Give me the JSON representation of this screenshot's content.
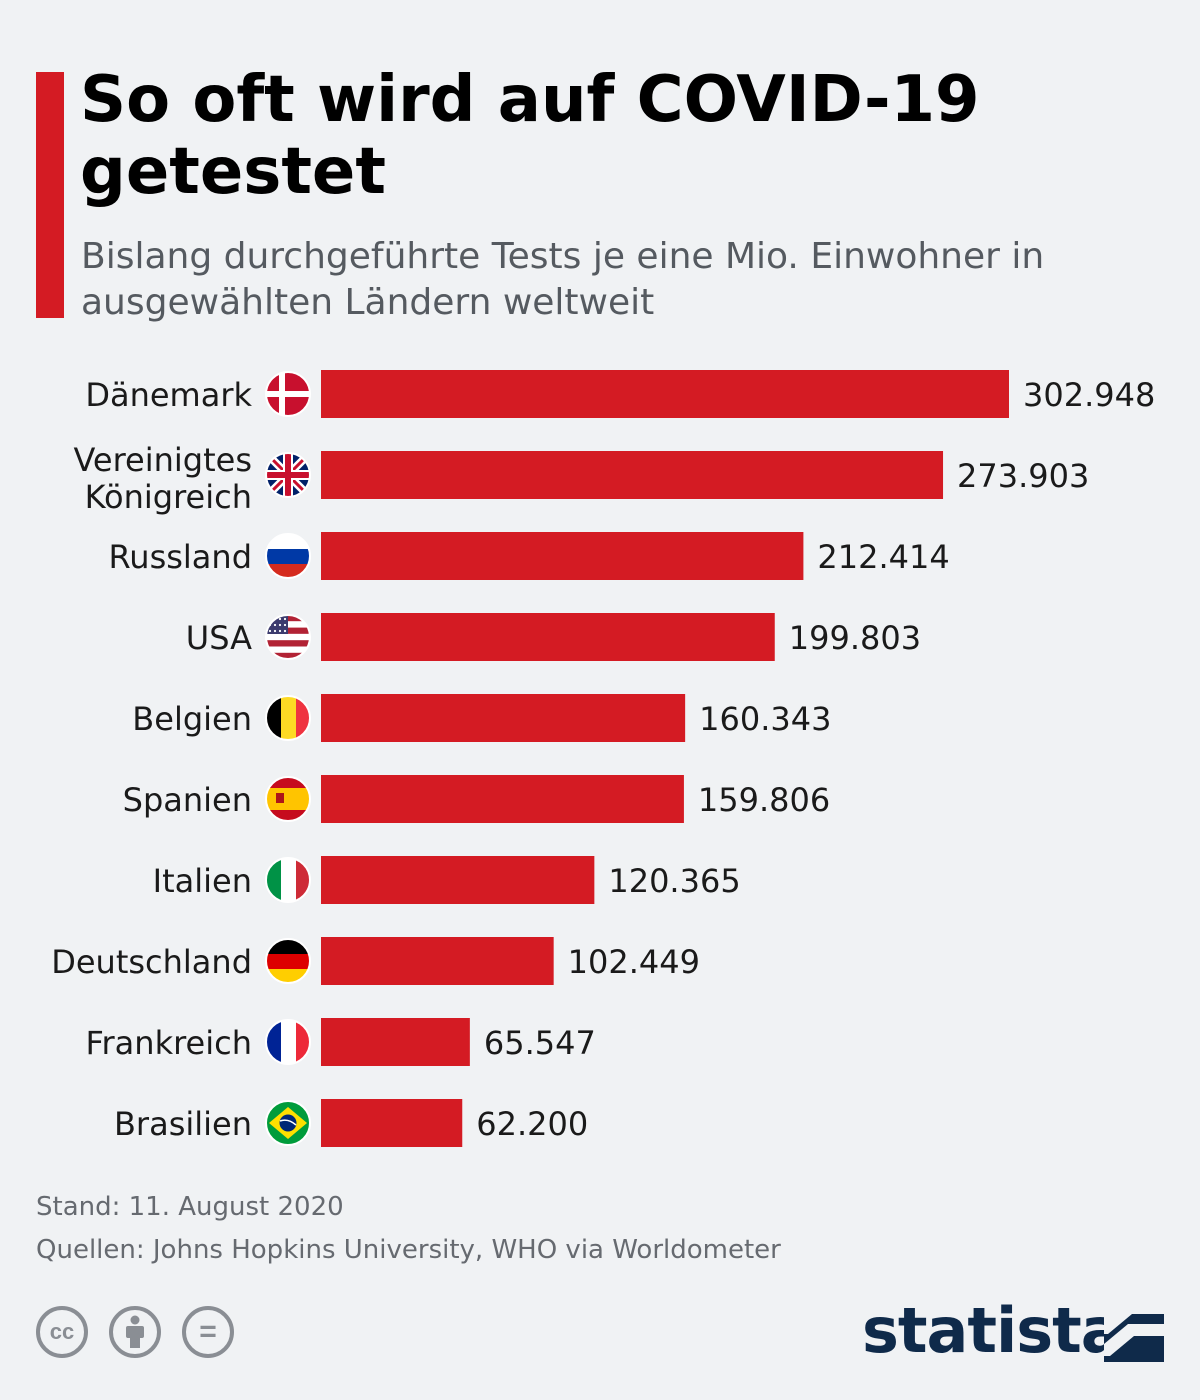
{
  "header": {
    "title": "So oft wird auf COVID-19 getestet",
    "subtitle": "Bislang durchgeführte Tests je eine Mio. Einwohner in ausgewählten Ländern weltweit"
  },
  "chart_data": {
    "type": "bar",
    "orientation": "horizontal",
    "categories": [
      "Dänemark",
      "Vereinigtes Königreich",
      "Russland",
      "USA",
      "Belgien",
      "Spanien",
      "Italien",
      "Deutschland",
      "Frankreich",
      "Brasilien"
    ],
    "values": [
      302948,
      273903,
      212414,
      199803,
      160343,
      159806,
      120365,
      102449,
      65547,
      62200
    ],
    "value_labels": [
      "302.948",
      "273.903",
      "212.414",
      "199.803",
      "160.343",
      "159.806",
      "120.365",
      "102.449",
      "65.547",
      "62.200"
    ],
    "flag_icons": [
      "flag-denmark-icon",
      "flag-united-kingdom-icon",
      "flag-russia-icon",
      "flag-usa-icon",
      "flag-belgium-icon",
      "flag-spain-icon",
      "flag-italy-icon",
      "flag-germany-icon",
      "flag-france-icon",
      "flag-brazil-icon"
    ],
    "xlim": [
      0,
      302948
    ],
    "grid": false,
    "bar_color": "#d41b23",
    "title": "So oft wird auf COVID-19 getestet",
    "subtitle": "Bislang durchgeführte Tests je eine Mio. Einwohner in ausgewählten Ländern weltweit"
  },
  "footer": {
    "date": "Stand: 11. August 2020",
    "source": "Quellen: Johns Hopkins University, WHO via Worldometer",
    "cc_text": "cc",
    "nd_text": "=",
    "license_icons": [
      "cc-icon",
      "by-person-icon",
      "nd-equals-icon"
    ],
    "brand": "statista",
    "brand_color": "#0f2a4a"
  },
  "colors": {
    "accent": "#d41b23",
    "background": "#f0f2f4",
    "text": "#1a1a1a",
    "muted": "#666a70"
  }
}
